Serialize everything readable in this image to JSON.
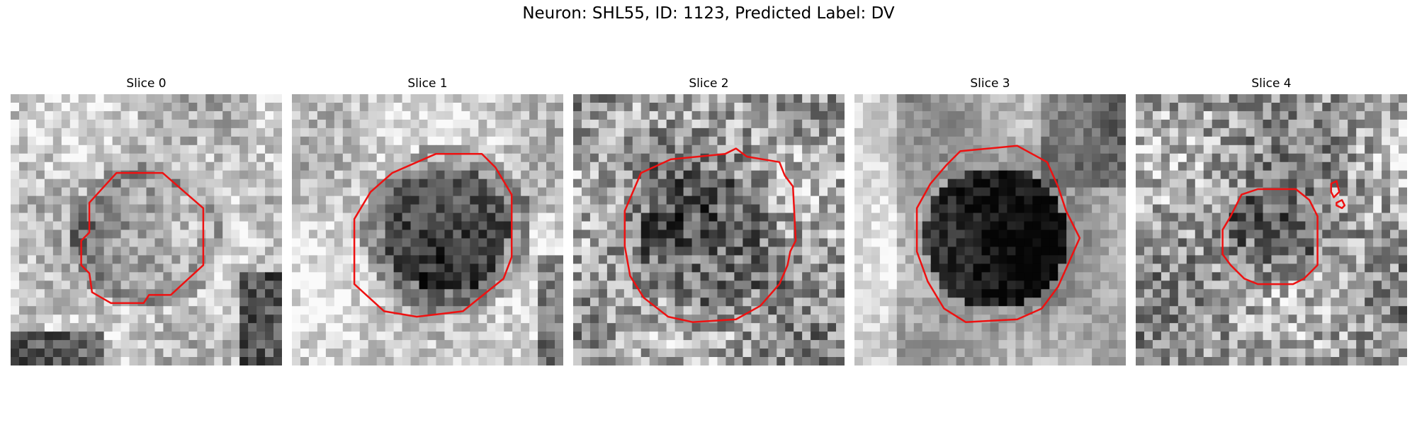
{
  "figure": {
    "title": "Neuron: SHL55, ID: 1123, Predicted Label: DV"
  },
  "contour_color": "#ee1111",
  "panels": [
    {
      "title": "Slice 0"
    },
    {
      "title": "Slice 1"
    },
    {
      "title": "Slice 2"
    },
    {
      "title": "Slice 3"
    },
    {
      "title": "Slice 4"
    }
  ]
}
